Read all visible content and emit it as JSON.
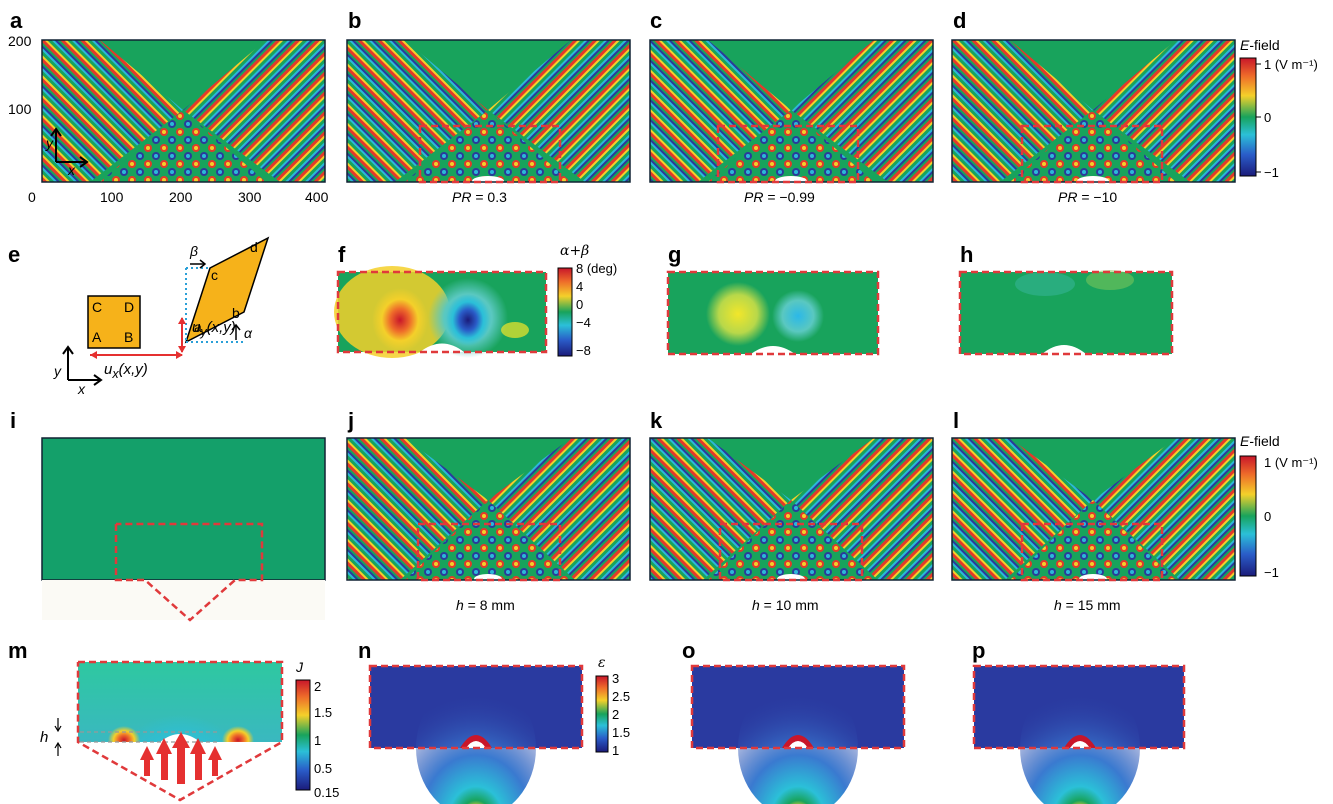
{
  "panels": {
    "a": "a",
    "b": "b",
    "c": "c",
    "d": "d",
    "e": "e",
    "f": "f",
    "g": "g",
    "h": "h",
    "i": "i",
    "j": "j",
    "k": "k",
    "l": "l",
    "m": "m",
    "n": "n",
    "o": "o",
    "p": "p"
  },
  "panel_a": {
    "y_ticks": [
      "200",
      "100"
    ],
    "x_ticks": [
      "0",
      "100",
      "200",
      "300",
      "400"
    ],
    "axis_x": "x",
    "axis_y": "y"
  },
  "captions_row1": {
    "b_var": "PR",
    "b_val": " = 0.3",
    "c_var": "PR",
    "c_val": " = −0.99",
    "d_var": "PR",
    "d_val": " = −10"
  },
  "colorbar_efield": {
    "title_var": "E",
    "title_rest": "-field",
    "ticks": [
      "1 (V m⁻¹)",
      "0",
      "−1"
    ]
  },
  "panel_e": {
    "corners_square": [
      "C",
      "D",
      "A",
      "B"
    ],
    "corners_rhombus": [
      "c",
      "d",
      "a",
      "b"
    ],
    "beta": "β",
    "alpha": "α",
    "uy": "u",
    "uy_sub": "y",
    "uy_arg": "(x,y)",
    "ux": "u",
    "ux_sub": "x",
    "ux_arg": "(x,y)",
    "axis_x": "x",
    "axis_y": "y"
  },
  "colorbar_angle": {
    "title": "α+β",
    "ticks": [
      "8 (deg)",
      "4",
      "0",
      "−4",
      "−8"
    ]
  },
  "captions_row3": {
    "j_var": "h",
    "j_val": " = 8 mm",
    "k_var": "h",
    "k_val": " = 10 mm",
    "l_var": "h",
    "l_val": " = 15 mm"
  },
  "colorbar_J": {
    "title": "J",
    "ticks": [
      "2",
      "1.5",
      "1",
      "0.5",
      "0.15"
    ]
  },
  "panel_m": {
    "h_label": "h"
  },
  "colorbar_eps": {
    "title": "ε",
    "ticks": [
      "3",
      "2.5",
      "2",
      "1.5",
      "1"
    ]
  },
  "colors": {
    "background_field": "#14a05a",
    "dashed_box": "#e0393b",
    "arrow": "#e53030",
    "permittivity_bg": "#2a3aa0"
  }
}
